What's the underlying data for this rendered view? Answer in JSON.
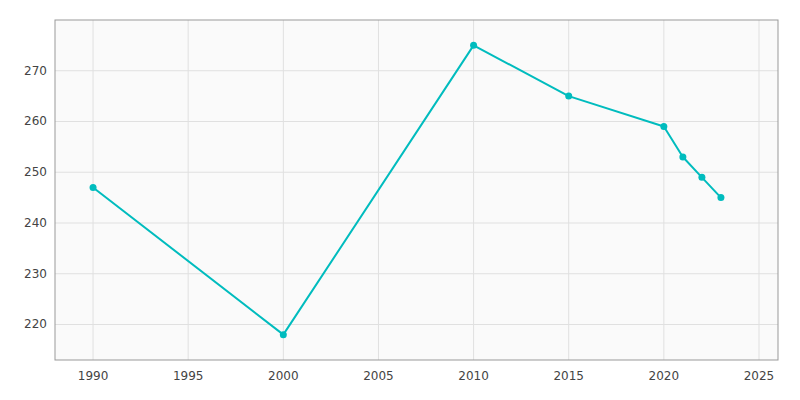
{
  "chart_data": {
    "type": "line",
    "x": [
      1990,
      2000,
      2010,
      2015,
      2020,
      2021,
      2022,
      2023
    ],
    "values": [
      247,
      218,
      275,
      265,
      259,
      253,
      249,
      245
    ],
    "color": "#00BCBE",
    "marker": "circle",
    "line_style": "solid",
    "xlim": [
      1988,
      2026
    ],
    "ylim": [
      213,
      280
    ],
    "xticks": [
      1990,
      1995,
      2000,
      2005,
      2010,
      2015,
      2020,
      2025
    ],
    "yticks": [
      220,
      230,
      240,
      250,
      260,
      270
    ],
    "grid": true
  }
}
